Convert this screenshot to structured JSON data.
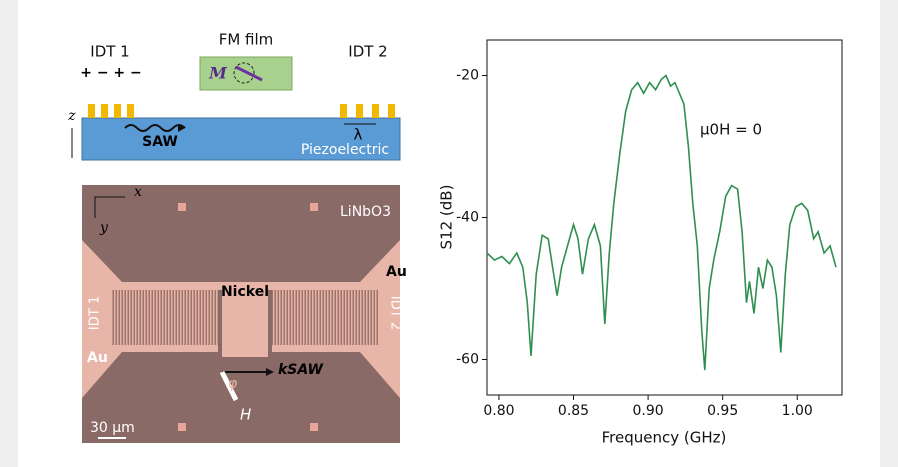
{
  "schematic": {
    "idt1": "IDT 1",
    "signs": "+  −  +  −",
    "film": "FM film",
    "magnet": "M",
    "idt2": "IDT 2",
    "wave": "SAW",
    "wavelength": "λ",
    "axis": "z",
    "substrate": "Piezoelectric"
  },
  "micrograph": {
    "x_axis": "x",
    "y_axis": "y",
    "crystal": "LiNbO3",
    "au_right": "Au",
    "au_left": "Au",
    "center": "Nickel",
    "idt1": "IDT 1",
    "idt2": "IDT 2",
    "wavevector": "kSAW",
    "angle": "φ",
    "field": "H",
    "scale": "30 µm"
  },
  "chart_data": {
    "type": "line",
    "xlabel": "Frequency (GHz)",
    "ylabel": "S12 (dB)",
    "annotation": "μ0H = 0",
    "xlim": [
      0.792,
      1.03
    ],
    "ylim": [
      -65,
      -15
    ],
    "xticks": [
      {
        "value": 0.8,
        "label": "0.80"
      },
      {
        "value": 0.85,
        "label": "0.85"
      },
      {
        "value": 0.9,
        "label": "0.90"
      },
      {
        "value": 0.95,
        "label": "0.95"
      },
      {
        "value": 1.0,
        "label": "1.00"
      }
    ],
    "yticks": [
      -20,
      -40,
      -60
    ],
    "series": [
      {
        "color": "#2f8f50",
        "x": [
          0.792,
          0.797,
          0.802,
          0.807,
          0.812,
          0.816,
          0.819,
          0.8215,
          0.825,
          0.829,
          0.833,
          0.836,
          0.839,
          0.842,
          0.846,
          0.85,
          0.853,
          0.856,
          0.86,
          0.864,
          0.868,
          0.871,
          0.874,
          0.877,
          0.881,
          0.885,
          0.889,
          0.893,
          0.897,
          0.901,
          0.905,
          0.909,
          0.912,
          0.915,
          0.918,
          0.921,
          0.924,
          0.927,
          0.93,
          0.933,
          0.936,
          0.938,
          0.941,
          0.944,
          0.948,
          0.952,
          0.956,
          0.96,
          0.963,
          0.966,
          0.968,
          0.971,
          0.974,
          0.977,
          0.98,
          0.983,
          0.986,
          0.989,
          0.992,
          0.995,
          0.999,
          1.003,
          1.007,
          1.011,
          1.014,
          1.018,
          1.022,
          1.026
        ],
        "values": [
          -45,
          -46,
          -45.5,
          -46.5,
          -45,
          -47,
          -52,
          -59.5,
          -48,
          -42.5,
          -43,
          -47,
          -51,
          -47,
          -44,
          -41,
          -43,
          -48,
          -43,
          -41,
          -44,
          -55,
          -45,
          -38,
          -31,
          -25,
          -22,
          -21,
          -22.5,
          -21,
          -22,
          -20.5,
          -20,
          -21.5,
          -21,
          -22.5,
          -24,
          -30,
          -38,
          -44,
          -56,
          -61.5,
          -50,
          -46,
          -42,
          -37,
          -35.5,
          -36,
          -42,
          -52,
          -49,
          -53.5,
          -47,
          -50,
          -46,
          -47,
          -51,
          -59,
          -48,
          -41,
          -38.5,
          -38,
          -39,
          -43,
          -42,
          -45,
          -44,
          -47
        ]
      }
    ]
  }
}
